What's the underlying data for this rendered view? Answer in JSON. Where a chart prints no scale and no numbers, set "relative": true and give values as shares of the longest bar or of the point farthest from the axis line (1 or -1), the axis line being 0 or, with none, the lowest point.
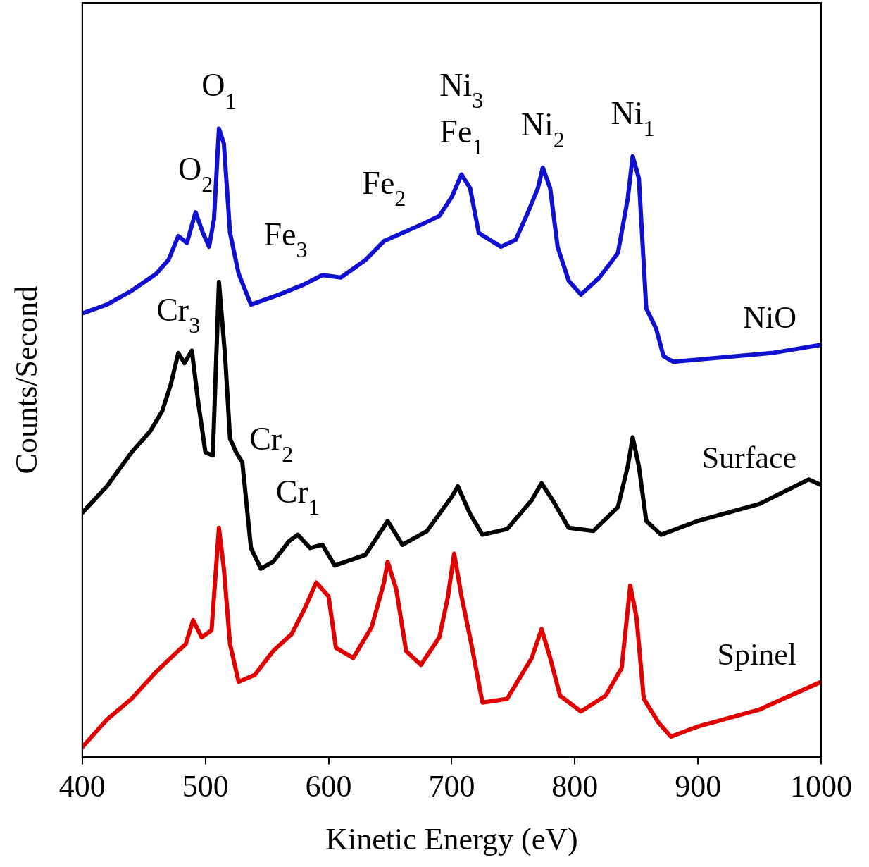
{
  "chart_data": {
    "type": "line",
    "relative": true,
    "xlabel": "Kinetic Energy (eV)",
    "ylabel": "Counts/Second",
    "xlim": [
      400,
      1000
    ],
    "xticks": [
      400,
      500,
      600,
      700,
      800,
      900,
      1000
    ],
    "tick_labels": "x",
    "grid": false,
    "legend": false,
    "marker": "none",
    "line_style": "solid",
    "series": [
      {
        "name": "NiO",
        "color": "#1010d0",
        "x": [
          400,
          420,
          440,
          460,
          470,
          478,
          485,
          492,
          498,
          503,
          507,
          511,
          515,
          520,
          527,
          537,
          560,
          580,
          595,
          610,
          630,
          645,
          660,
          675,
          690,
          700,
          708,
          715,
          722,
          740,
          752,
          762,
          770,
          774,
          780,
          786,
          795,
          805,
          820,
          835,
          843,
          847,
          852,
          858,
          866,
          872,
          880,
          920,
          960,
          1000
        ],
        "values": [
          0.706,
          0.72,
          0.742,
          0.769,
          0.791,
          0.829,
          0.818,
          0.867,
          0.834,
          0.812,
          0.856,
          1.0,
          0.976,
          0.834,
          0.769,
          0.72,
          0.736,
          0.752,
          0.767,
          0.763,
          0.791,
          0.821,
          0.834,
          0.847,
          0.861,
          0.891,
          0.927,
          0.905,
          0.834,
          0.812,
          0.823,
          0.867,
          0.905,
          0.938,
          0.905,
          0.812,
          0.758,
          0.736,
          0.763,
          0.802,
          0.889,
          0.956,
          0.921,
          0.714,
          0.682,
          0.638,
          0.629,
          0.636,
          0.643,
          0.656
        ]
      },
      {
        "name": "Surface",
        "color": "#000000",
        "x": [
          400,
          420,
          440,
          455,
          465,
          472,
          478,
          483,
          489,
          494,
          500,
          506,
          511,
          516,
          520,
          525,
          530,
          537,
          545,
          555,
          568,
          575,
          585,
          595,
          605,
          630,
          648,
          660,
          680,
          700,
          705,
          715,
          725,
          745,
          765,
          773,
          782,
          795,
          815,
          835,
          843,
          847,
          852,
          858,
          870,
          900,
          950,
          990,
          1000
        ],
        "values": [
          0.389,
          0.431,
          0.485,
          0.518,
          0.551,
          0.594,
          0.643,
          0.627,
          0.647,
          0.567,
          0.485,
          0.48,
          0.756,
          0.638,
          0.507,
          0.485,
          0.469,
          0.333,
          0.3,
          0.311,
          0.344,
          0.354,
          0.333,
          0.338,
          0.305,
          0.322,
          0.376,
          0.338,
          0.36,
          0.414,
          0.431,
          0.387,
          0.354,
          0.363,
          0.409,
          0.436,
          0.409,
          0.365,
          0.36,
          0.398,
          0.463,
          0.509,
          0.463,
          0.376,
          0.354,
          0.376,
          0.403,
          0.442,
          0.433
        ]
      },
      {
        "name": "Spinel",
        "color": "#e00000",
        "x": [
          400,
          420,
          440,
          460,
          475,
          484,
          490,
          497,
          505,
          511,
          515,
          520,
          527,
          540,
          555,
          570,
          580,
          590,
          600,
          606,
          620,
          635,
          645,
          648,
          655,
          663,
          675,
          690,
          697,
          702,
          708,
          716,
          725,
          745,
          765,
          773,
          780,
          788,
          805,
          825,
          838,
          845,
          850,
          856,
          868,
          878,
          900,
          950,
          1000
        ],
        "values": [
          0.016,
          0.06,
          0.093,
          0.136,
          0.164,
          0.18,
          0.218,
          0.191,
          0.202,
          0.365,
          0.3,
          0.18,
          0.12,
          0.131,
          0.169,
          0.196,
          0.234,
          0.278,
          0.256,
          0.174,
          0.158,
          0.207,
          0.278,
          0.311,
          0.267,
          0.169,
          0.147,
          0.191,
          0.256,
          0.324,
          0.256,
          0.18,
          0.087,
          0.093,
          0.158,
          0.204,
          0.158,
          0.098,
          0.073,
          0.098,
          0.142,
          0.273,
          0.224,
          0.093,
          0.055,
          0.033,
          0.049,
          0.076,
          0.12
        ]
      }
    ],
    "annotations": [
      {
        "text": "O$_{1}$",
        "x": 511,
        "y": 1.0
      },
      {
        "text": "O$_{2}$",
        "x": 492,
        "y": 0.867
      },
      {
        "text": "Fe$_{3}$",
        "x": 580,
        "y": 0.752
      },
      {
        "text": "Fe$_{2}$",
        "x": 660,
        "y": 0.834
      },
      {
        "text": "Fe$_{1}$",
        "x": 708,
        "y": 0.927
      },
      {
        "text": "Ni$_{3}$",
        "x": 708,
        "y": 0.927
      },
      {
        "text": "Ni$_{2}$",
        "x": 774,
        "y": 0.938
      },
      {
        "text": "Ni$_{1}$",
        "x": 847,
        "y": 0.956
      },
      {
        "text": "Cr$_{3}$",
        "x": 478,
        "y": 0.643
      },
      {
        "text": "Cr$_{2}$",
        "x": 530,
        "y": 0.469
      },
      {
        "text": "Cr$_{1}$",
        "x": 575,
        "y": 0.354
      }
    ]
  }
}
